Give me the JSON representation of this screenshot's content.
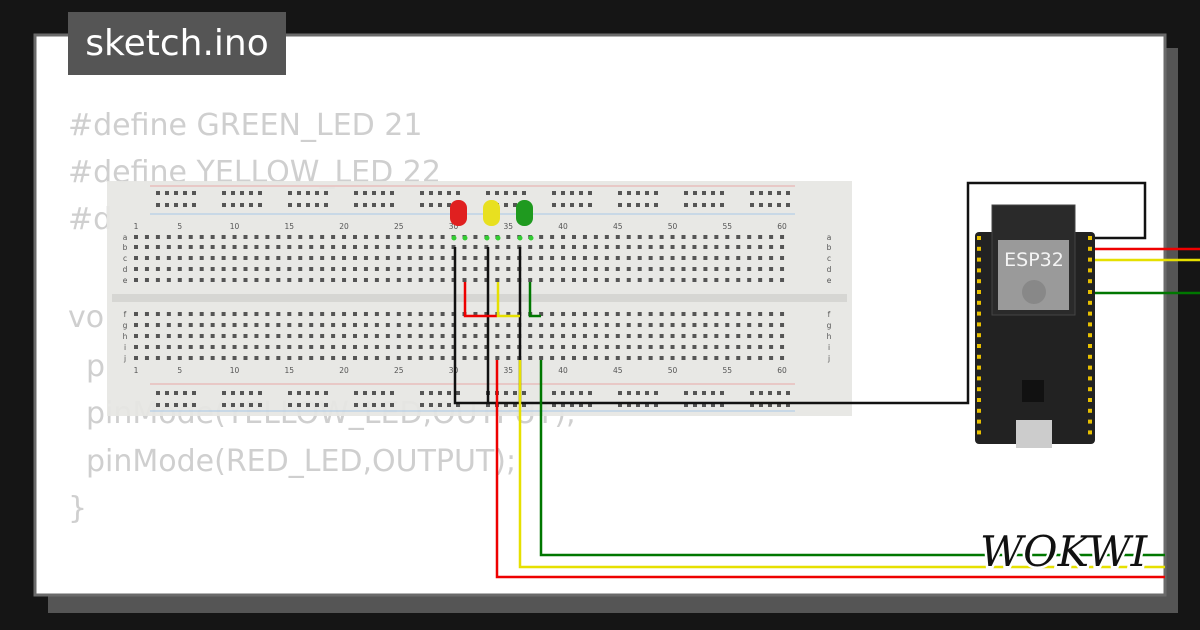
{
  "tab": {
    "title": "sketch.ino"
  },
  "code": {
    "lines": [
      "#define GREEN_LED  21",
      "#define YELLOW_LED  22",
      "#d",
      "vo",
      "p",
      "pinMode(YELLOW_LED,OUTPUT);",
      "pinMode(RED_LED,OUTPUT);",
      "}"
    ]
  },
  "breadboard": {
    "column_labels": [
      "1",
      "5",
      "10",
      "15",
      "20",
      "25",
      "30",
      "35",
      "40",
      "45",
      "50",
      "55",
      "60"
    ],
    "row_labels": [
      "a",
      "b",
      "c",
      "d",
      "e",
      "f",
      "g",
      "h",
      "i",
      "j"
    ]
  },
  "board": {
    "label": "ESP32"
  },
  "logo": {
    "text": "WOKWI"
  }
}
